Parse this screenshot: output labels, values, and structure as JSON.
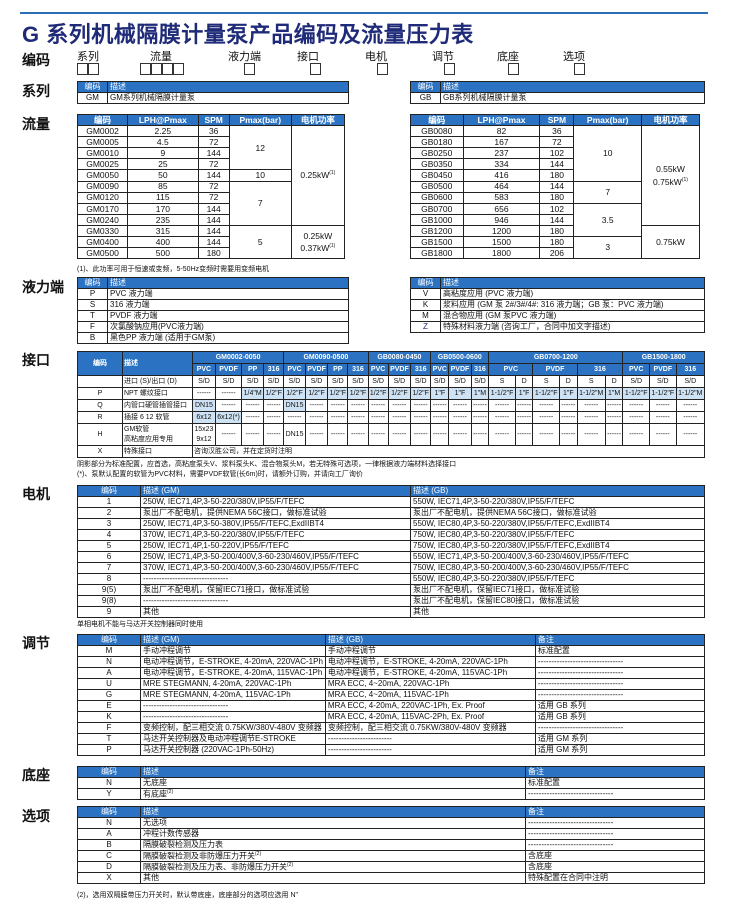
{
  "title": "G 系列机械隔膜计量泵产品编码及流量压力表",
  "code_row": {
    "label": "编码",
    "fields": [
      "系列",
      "流量",
      "液力端",
      "接口",
      "电机",
      "调节",
      "底座",
      "选项"
    ]
  },
  "sections": {
    "series": "系列",
    "flow": "流量",
    "wet_end": "液力端",
    "connection": "接口",
    "motor": "电机",
    "control": "调节",
    "base": "底座",
    "options": "选项"
  },
  "series": {
    "headers": [
      "编码",
      "描述"
    ],
    "gm": [
      [
        "GM",
        "GM系列机械隔膜计量泵"
      ]
    ],
    "gb": [
      [
        "GB",
        "GB系列机械隔膜计量泵"
      ]
    ]
  },
  "flow": {
    "headers": [
      "编码",
      "LPH@Pmax",
      "SPM",
      "Pmax(bar)",
      "电机功率"
    ],
    "gm_rows": [
      [
        "GM0002",
        "2.25",
        "36"
      ],
      [
        "GM0005",
        "4.5",
        "72"
      ],
      [
        "GM0010",
        "9",
        "144"
      ],
      [
        "GM0025",
        "25",
        "72"
      ],
      [
        "GM0050",
        "50",
        "144"
      ],
      [
        "GM0090",
        "85",
        "72"
      ],
      [
        "GM0120",
        "115",
        "72"
      ],
      [
        "GM0170",
        "170",
        "144"
      ],
      [
        "GM0240",
        "235",
        "144"
      ],
      [
        "GM0330",
        "315",
        "144"
      ],
      [
        "GM0400",
        "400",
        "144"
      ],
      [
        "GM0500",
        "500",
        "180"
      ]
    ],
    "gm_pmax": [
      "12",
      "10",
      "7",
      "5"
    ],
    "gm_power": [
      {
        "lines": [
          "0.25kW"
        ],
        "sup": "(1)"
      },
      {
        "lines": [
          "0.25kW",
          "0.37kW"
        ],
        "sup": "(1)"
      }
    ],
    "gb_rows": [
      [
        "GB0080",
        "82",
        "36"
      ],
      [
        "GB0180",
        "167",
        "72"
      ],
      [
        "GB0250",
        "237",
        "102"
      ],
      [
        "GB0350",
        "334",
        "144"
      ],
      [
        "GB0450",
        "416",
        "180"
      ],
      [
        "GB0500",
        "464",
        "144"
      ],
      [
        "GB0600",
        "583",
        "180"
      ],
      [
        "GB0700",
        "656",
        "102"
      ],
      [
        "GB1000",
        "946",
        "144"
      ],
      [
        "GB1200",
        "1200",
        "180"
      ],
      [
        "GB1500",
        "1500",
        "180"
      ],
      [
        "GB1800",
        "1800",
        "206"
      ]
    ],
    "gb_pmax": [
      "10",
      "7",
      "3.5",
      "3"
    ],
    "gb_power": [
      {
        "lines": [
          "0.55kW",
          "0.75kW"
        ],
        "sup": "(1)"
      },
      {
        "lines": [
          "0.75kW"
        ],
        "sup": ""
      }
    ],
    "footnote": "(1)、此功率可用于恒速或变频，5-50Hz变频时需要用变频电机"
  },
  "wet_end": {
    "headers": [
      "编码",
      "描述"
    ],
    "left": [
      [
        "P",
        "PVC 液力端"
      ],
      [
        "S",
        "316 液力端"
      ],
      [
        "T",
        "PVDF 液力端"
      ],
      [
        "F",
        "次氯酸钠应用(PVC液力端)"
      ],
      [
        "B",
        "黑色PP 液力端 (适用于GM泵)"
      ]
    ],
    "right": [
      [
        "V",
        "高粘度应用 (PVC 液力端)"
      ],
      [
        "K",
        "浆料应用 (GM 泵 2#/3#/4#: 316 液力端；GB 泵：PVC 液力端)"
      ],
      [
        "M",
        "混合物应用 (GM 泵PVC 液力端)"
      ],
      [
        "Z",
        "特殊材料液力端 (咨询工厂，合同中加文字描述)"
      ]
    ]
  },
  "connection": {
    "headers": [
      "编码",
      "描述"
    ],
    "groups": [
      {
        "name": "GM0002-0050",
        "materials": [
          "PVC",
          "PVDF",
          "PP",
          "316"
        ]
      },
      {
        "name": "GM0090-0500",
        "materials": [
          "PVC",
          "PVDF",
          "PP",
          "316"
        ]
      },
      {
        "name": "GB0080-0450",
        "materials": [
          "PVC",
          "PVDF",
          "316"
        ]
      },
      {
        "name": "GB0500-0600",
        "materials": [
          "PVC",
          "PVDF",
          "316"
        ]
      },
      {
        "name": "GB0700-1200",
        "materials": [
          "PVC",
          "PVDF",
          "316"
        ]
      },
      {
        "name": "GB1500-1800",
        "materials": [
          "PVC",
          "PVDF",
          "316"
        ]
      }
    ],
    "rows": [
      {
        "code": "",
        "desc": "进口 (S)/出口 (D)",
        "cells": [
          "S/D",
          "S/D",
          "S/D",
          "S/D",
          "S/D",
          "S/D",
          "S/D",
          "S/D",
          "S/D",
          "S/D",
          "S/D",
          "S/D",
          "S/D",
          "S/D",
          "S",
          "D",
          "S",
          "D",
          "S",
          "D",
          "S/D",
          "S/D",
          "S/D"
        ],
        "standard": []
      },
      {
        "code": "P",
        "desc": "NPT 螺纹接口",
        "cells": [
          "------",
          "------",
          "1/4\"M",
          "1/2\"F",
          "1/2\"F",
          "1/2\"F",
          "1/2\"F",
          "1/2\"F",
          "1/2\"F",
          "1/2\"F",
          "1/2\"F",
          "1\"F",
          "1\"F",
          "1\"M",
          "1-1/2\"F",
          "1\"F",
          "1-1/2\"F",
          "1\"F",
          "1-1/2\"M",
          "1\"M",
          "1-1/2\"F",
          "1-1/2\"F",
          "1-1/2\"M"
        ],
        "standard": [
          2,
          3,
          4,
          5,
          6,
          7,
          8,
          9,
          10,
          11,
          12,
          13,
          14,
          15,
          16,
          17,
          18,
          19,
          20,
          21,
          22
        ]
      },
      {
        "code": "Q",
        "desc": "内管口硬管插管接口",
        "cells": [
          "DN15",
          "------",
          "------",
          "------",
          "DN15",
          "------",
          "------",
          "------",
          "------",
          "------",
          "------",
          "------",
          "------",
          "------",
          "------",
          "------",
          "------",
          "------",
          "------",
          "------",
          "------",
          "------",
          "------"
        ],
        "standard": [
          0,
          4
        ]
      },
      {
        "code": "R",
        "desc": "插接 6  12 软管",
        "cells": [
          "6x12",
          "6x12(*)",
          "------",
          "------",
          "------",
          "------",
          "------",
          "------",
          "------",
          "------",
          "------",
          "------",
          "------",
          "------",
          "------",
          "------",
          "------",
          "------",
          "------",
          "------",
          "------",
          "------",
          "------"
        ],
        "standard": [
          0,
          1
        ]
      },
      {
        "code": "H",
        "desc": "GM软管\n高粘度应用专用",
        "cells": [
          "15x23\n9x12",
          "------",
          "------",
          "------",
          "DN15",
          "------",
          "------",
          "------",
          "------",
          "------",
          "------",
          "------",
          "------",
          "------",
          "------",
          "------",
          "------",
          "------",
          "------",
          "------",
          "------",
          "------",
          "------"
        ],
        "standard": []
      }
    ],
    "special": {
      "code": "X",
      "desc": "特殊接口",
      "value": "咨询汉胜公司，并在定货时注明"
    },
    "notes": [
      "阴影部分为标准配置，应首选，高粘度泵头V、浆料泵头K、混合物泵头M，若无特殊可选项，一律根据液力端材料选择接口",
      "(*)、泵默认配置的软管为PVC材料，需要PVDF软管(长6m)时，请额外订购，并请向工厂询价"
    ]
  },
  "motor": {
    "headers": [
      "编码",
      "描述  (GM)",
      "描述  (GB)"
    ],
    "rows": [
      [
        "1",
        "250W, IEC71,4P,3-50-220/380V,IP55/F/TEFC",
        "550W, IEC71,4P,3-50-220/380V,IP55/F/TEFC"
      ],
      [
        "2",
        "泵出厂不配电机，提供NEMA 56C接口，做标准试验",
        "泵出厂不配电机，提供NEMA 56C接口，做标准试验"
      ],
      [
        "3",
        "250W, IEC71,4P,3-50-380V,IP55/F/TEFC,ExdIIBT4",
        "550W, IEC80,4P,3-50-220/380V,IP55/F/TEFC,ExdIIBT4"
      ],
      [
        "4",
        "370W, IEC71,4P,3-50-220/380V,IP55/F/TEFC",
        "750W, IEC80,4P,3-50-220/380V,IP55/F/TEFC"
      ],
      [
        "5",
        "250W, IEC71,4P,1-50-220V,IP55/F/TEFC",
        "750W, IEC80,4P,3-50-220/380V,IP55/F/TEFC,ExdIIBT4"
      ],
      [
        "6",
        "250W, IEC71,4P,3-50-200/400V,3-60-230/460V,IP55/F/TEFC",
        "550W, IEC71,4P,3-50-200/400V,3-60-230/460V,IP55/F/TEFC"
      ],
      [
        "7",
        "370W, IEC71,4P,3-50-200/400V,3-60-230/460V,IP55/F/TEFC",
        "750W, IEC80,4P,3-50-200/400V,3-60-230/460V,IP55/F/TEFC"
      ],
      [
        "8",
        "--------------------------------",
        "550W, IEC80,4P,3-50-220/380V,IP55/F/TEFC"
      ],
      [
        "9(5)",
        "泵出厂不配电机，保留IEC71接口，做标准试验",
        "泵出厂不配电机，保留IEC71接口，做标准试验"
      ],
      [
        "9(8)",
        "--------------------------------",
        "泵出厂不配电机，保留IEC80接口，做标准试验"
      ],
      [
        "9",
        "其他",
        "其他"
      ]
    ],
    "note": "单相电机不能与马达开关控制器同时使用"
  },
  "control": {
    "headers": [
      "编码",
      "描述 (GM)",
      "描述 (GB)",
      "备注"
    ],
    "rows": [
      [
        "M",
        "手动冲程调节",
        "手动冲程调节",
        "标准配置"
      ],
      [
        "N",
        "电动冲程调节，E-STROKE, 4-20mA, 220VAC-1Ph",
        "电动冲程调节，E-STROKE, 4-20mA, 220VAC-1Ph",
        "--------------------------------"
      ],
      [
        "A",
        "电动冲程调节，E-STROKE, 4-20mA, 115VAC-1Ph",
        "电动冲程调节，E-STROKE, 4-20mA, 115VAC-1Ph",
        "--------------------------------"
      ],
      [
        "U",
        "MRE STEGMANN, 4-20mA, 220VAC-1Ph",
        "MRA ECC, 4~20mA, 220VAC-1Ph",
        "--------------------------------"
      ],
      [
        "G",
        "MRE STEGMANN, 4-20mA, 115VAC-1Ph",
        "MRA ECC, 4~20mA, 115VAC-1Ph",
        "--------------------------------"
      ],
      [
        "E",
        "--------------------------------",
        "MRA ECC, 4-20mA, 220VAC-1Ph, Ex. Proof",
        "适用 GB 系列"
      ],
      [
        "K",
        "--------------------------------",
        "MRA ECC, 4-20mA, 115VAC-2Ph, Ex. Proof",
        "适用 GB 系列"
      ],
      [
        "F",
        "变频控制，配三相交流 0.75KW/380V-480V 变频器",
        "变频控制，配三相交流 0.75KW/380V-480V 变频器",
        "--------------------------------"
      ],
      [
        "T",
        "马达开关控制器及电动冲程调节E-STROKE",
        "------------------------",
        "适用 GM 系列"
      ],
      [
        "P",
        "马达开关控制器 (220VAC-1Ph-50Hz)",
        "------------------------",
        "适用 GM 系列"
      ]
    ]
  },
  "base": {
    "headers": [
      "编码",
      "描述",
      "备注"
    ],
    "rows": [
      {
        "code": "N",
        "desc": "无底座",
        "sup": "",
        "note": "标准配置"
      },
      {
        "code": "Y",
        "desc": "有底座",
        "sup": "(2)",
        "note": "--------------------------------"
      }
    ]
  },
  "options": {
    "headers": [
      "编码",
      "描述",
      "备注"
    ],
    "rows": [
      {
        "code": "N",
        "desc": "无选项",
        "sup": "",
        "note": "--------------------------------"
      },
      {
        "code": "A",
        "desc": "冲程计数传感器",
        "sup": "",
        "note": "--------------------------------"
      },
      {
        "code": "B",
        "desc": "隔膜破裂检测及压力表",
        "sup": "",
        "note": "--------------------------------"
      },
      {
        "code": "C",
        "desc": "隔膜破裂检测及非防爆压力开关",
        "sup": "(2)",
        "note": "含底座"
      },
      {
        "code": "D",
        "desc": "隔膜破裂检测及压力表、非防爆压力开关",
        "sup": "(2)",
        "note": "含底座"
      },
      {
        "code": "X",
        "desc": "其他",
        "sup": "",
        "note": "特殊配置在合同中注明"
      }
    ],
    "footnote": "(2)，选用双隔膜带压力开关时，默认带底座，底座部分的选项应选用  N\""
  },
  "colors": {
    "header_blue": "#2b73c2",
    "title_navy": "#1f2a78",
    "standard_highlight": "#cfe2f4"
  }
}
